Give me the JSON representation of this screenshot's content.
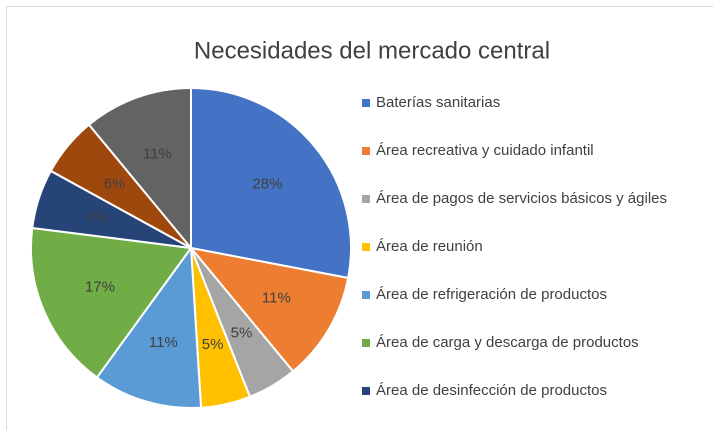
{
  "chart_data": {
    "type": "pie",
    "title": "Necesidades del mercado central",
    "categories": [
      "Baterías sanitarias",
      "Área recreativa y cuidado infantil",
      "Área de pagos de servicios básicos y ágiles",
      "Área de reunión",
      "Área de refrigeración de productos",
      "Área de carga y descarga de productos",
      "Área de desinfección de productos",
      null,
      null
    ],
    "values": [
      28,
      11,
      5,
      5,
      11,
      17,
      6,
      6,
      11
    ],
    "value_labels": [
      "28%",
      "11%",
      "5%",
      "5%",
      "11%",
      "17%",
      "6%",
      "6%",
      "11%"
    ],
    "colors": [
      "#4472c4",
      "#ed7d31",
      "#a5a5a5",
      "#ffc000",
      "#5b9bd5",
      "#70ad47",
      "#264478",
      "#9e480e",
      "#636363"
    ]
  }
}
